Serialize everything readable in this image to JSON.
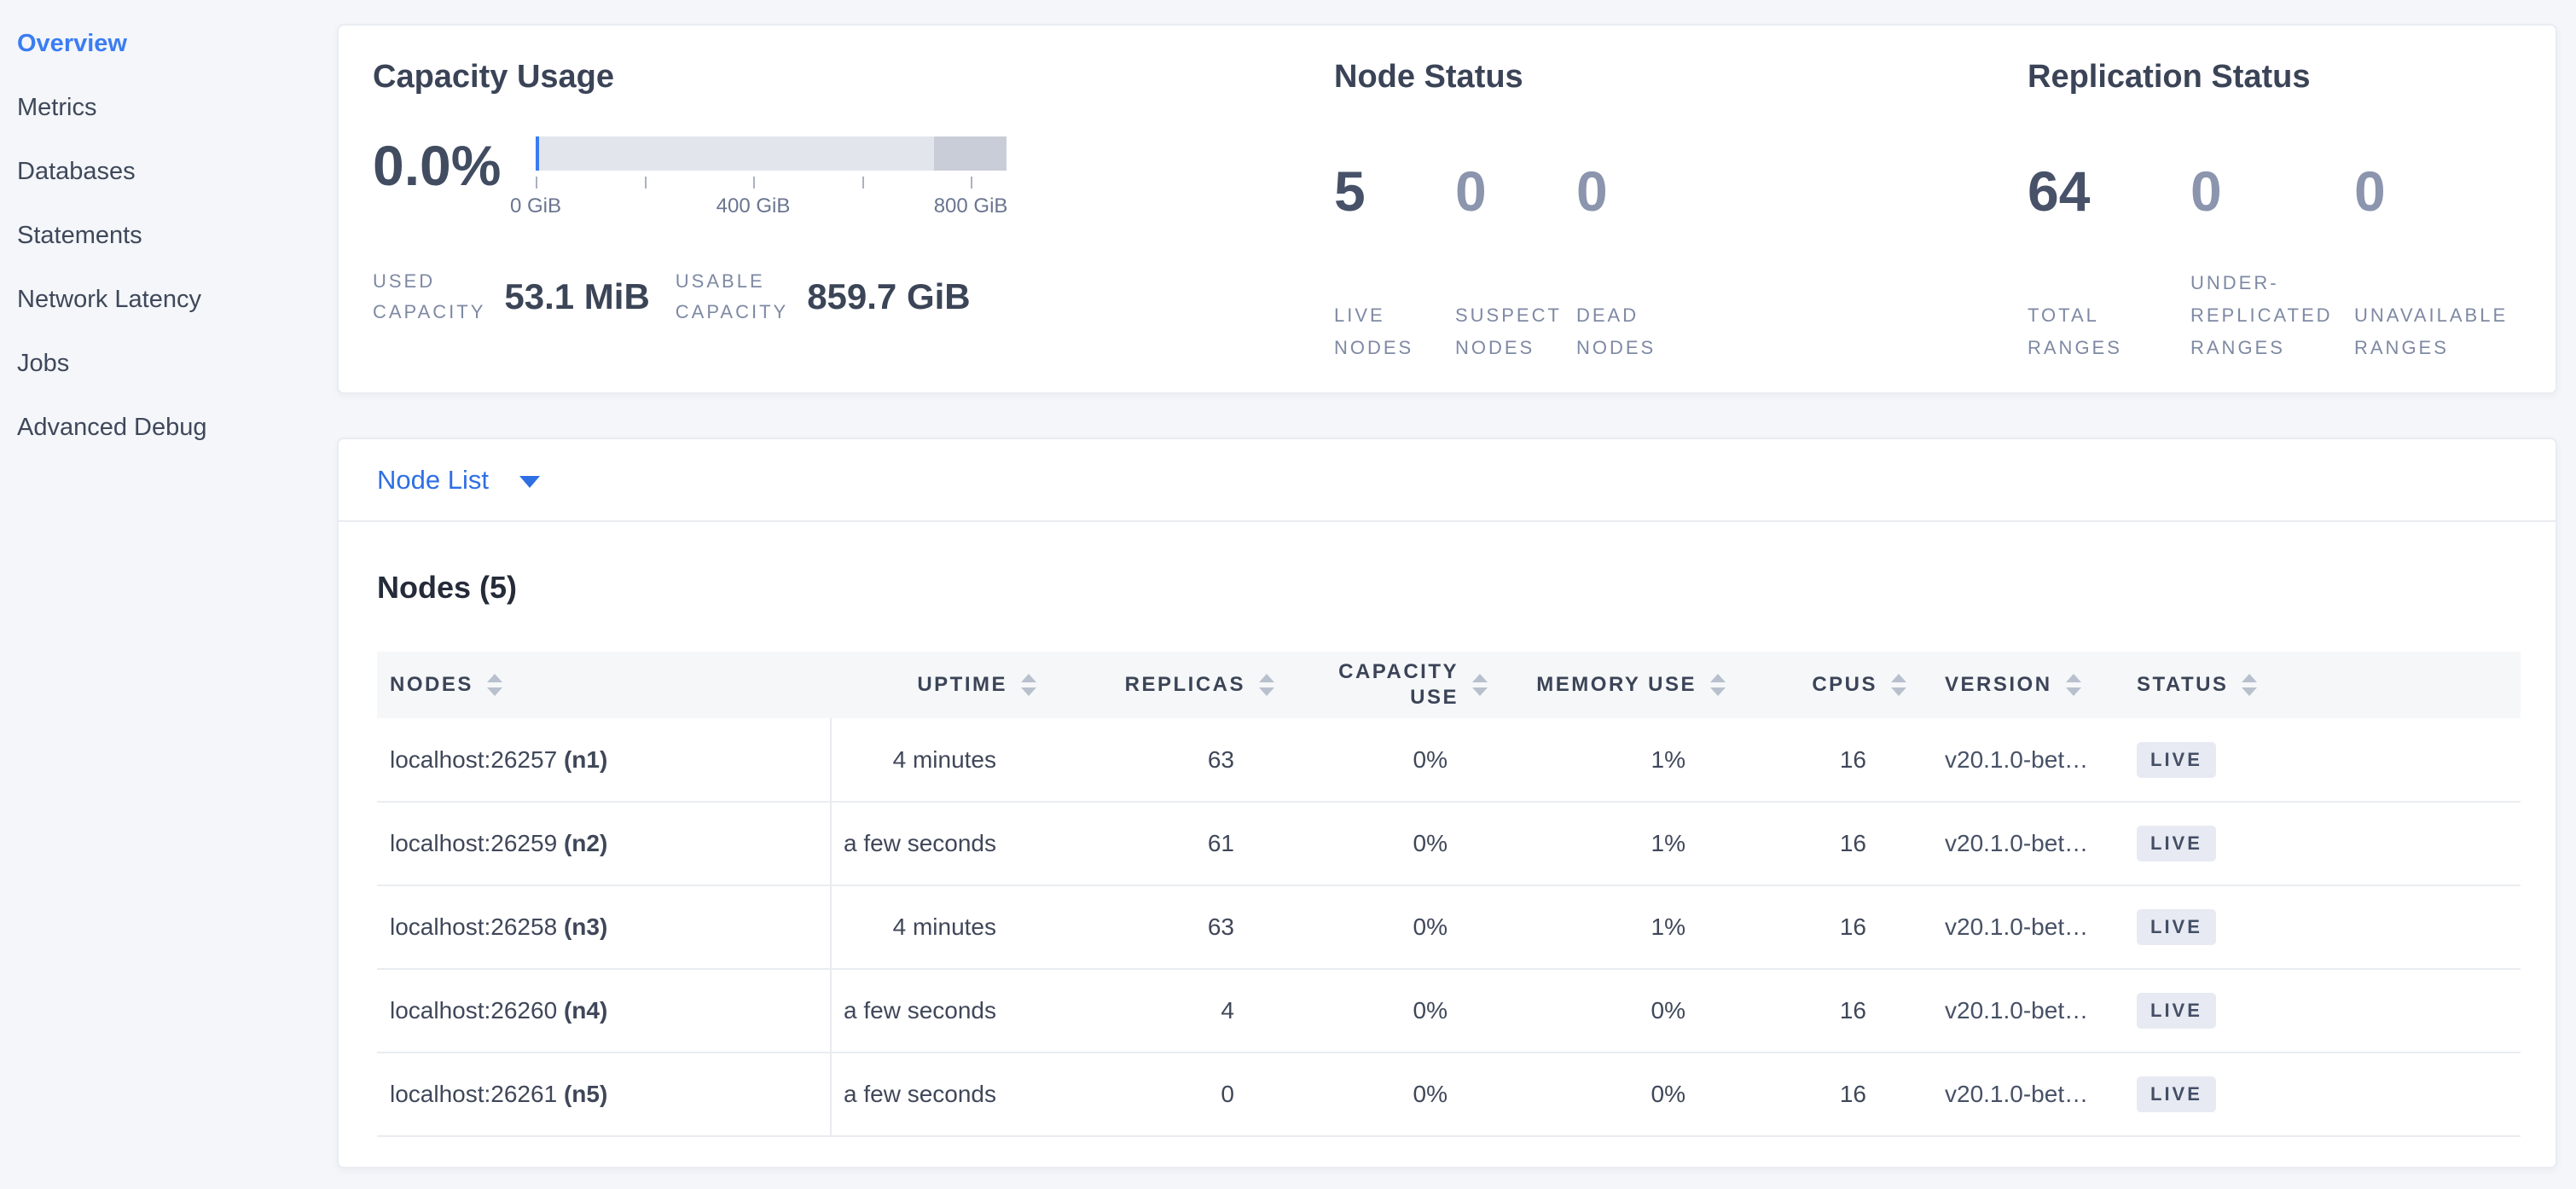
{
  "colors": {
    "accent_blue": "#3b7df2",
    "link_blue": "#2e6fe3",
    "page_bg": "#f4f6fa",
    "gauge_used": "#3a7cf0",
    "gauge_usable": "#e2e5ec",
    "gauge_other": "#c9cdd7",
    "badge_bg": "#e7eaf2",
    "badge_text": "#444f66"
  },
  "sidebar": {
    "items": [
      {
        "label": "Overview",
        "active": true
      },
      {
        "label": "Metrics"
      },
      {
        "label": "Databases"
      },
      {
        "label": "Statements"
      },
      {
        "label": "Network Latency"
      },
      {
        "label": "Jobs"
      },
      {
        "label": "Advanced Debug"
      }
    ]
  },
  "capacity": {
    "title": "Capacity Usage",
    "percent": "0.0%",
    "gauge": {
      "segments": {
        "used_pct": 0.8,
        "usable_pct": 83.8,
        "other_pct": 15.4
      },
      "ticks": [
        {
          "left": 0,
          "label": "0 GiB"
        },
        {
          "left": 23.1,
          "label": ""
        },
        {
          "left": 46.2,
          "label": "400 GiB"
        },
        {
          "left": 69.3,
          "label": ""
        },
        {
          "left": 92.4,
          "label": "800 GiB"
        }
      ]
    },
    "stats": [
      {
        "label_lines": [
          "USED",
          "CAPACITY"
        ],
        "value": "53.1 MiB"
      },
      {
        "label_lines": [
          "USABLE",
          "CAPACITY"
        ],
        "value": "859.7 GiB"
      }
    ]
  },
  "node_status": {
    "title": "Node Status",
    "metrics": [
      {
        "value": "5",
        "label_lines": [
          "LIVE",
          "NODES"
        ]
      },
      {
        "value": "0",
        "label_lines": [
          "SUSPECT",
          "NODES"
        ]
      },
      {
        "value": "0",
        "label_lines": [
          "DEAD",
          "NODES"
        ]
      }
    ]
  },
  "replication_status": {
    "title": "Replication Status",
    "metrics": [
      {
        "value": "64",
        "label_lines": [
          "",
          "TOTAL",
          "RANGES"
        ]
      },
      {
        "value": "0",
        "label_lines": [
          "UNDER-",
          "REPLICATED",
          "RANGES"
        ]
      },
      {
        "value": "0",
        "label_lines": [
          "",
          "UNAVAILABLE",
          "RANGES"
        ]
      }
    ]
  },
  "node_list": {
    "selector_label": "Node List",
    "table_title": "Nodes (5)",
    "columns": [
      {
        "lines": [
          "NODES",
          ""
        ]
      },
      {
        "lines": [
          "UPTIME",
          ""
        ]
      },
      {
        "lines": [
          "REPLICAS",
          ""
        ]
      },
      {
        "lines": [
          "CAPACITY",
          "USE"
        ]
      },
      {
        "lines": [
          "MEMORY USE",
          ""
        ]
      },
      {
        "lines": [
          "CPUS",
          ""
        ]
      },
      {
        "lines": [
          "VERSION",
          ""
        ]
      },
      {
        "lines": [
          "STATUS",
          ""
        ]
      }
    ],
    "rows": [
      {
        "address": "localhost:26257",
        "id": "(n1)",
        "uptime": "4 minutes",
        "replicas": "63",
        "capacity_use": "0%",
        "memory_use": "1%",
        "cpus": "16",
        "version": "v20.1.0-bet…",
        "status": "LIVE"
      },
      {
        "address": "localhost:26259",
        "id": "(n2)",
        "uptime": "a few seconds",
        "replicas": "61",
        "capacity_use": "0%",
        "memory_use": "1%",
        "cpus": "16",
        "version": "v20.1.0-bet…",
        "status": "LIVE"
      },
      {
        "address": "localhost:26258",
        "id": "(n3)",
        "uptime": "4 minutes",
        "replicas": "63",
        "capacity_use": "0%",
        "memory_use": "1%",
        "cpus": "16",
        "version": "v20.1.0-bet…",
        "status": "LIVE"
      },
      {
        "address": "localhost:26260",
        "id": "(n4)",
        "uptime": "a few seconds",
        "replicas": "4",
        "capacity_use": "0%",
        "memory_use": "0%",
        "cpus": "16",
        "version": "v20.1.0-bet…",
        "status": "LIVE"
      },
      {
        "address": "localhost:26261",
        "id": "(n5)",
        "uptime": "a few seconds",
        "replicas": "0",
        "capacity_use": "0%",
        "memory_use": "0%",
        "cpus": "16",
        "version": "v20.1.0-bet…",
        "status": "LIVE"
      }
    ]
  }
}
